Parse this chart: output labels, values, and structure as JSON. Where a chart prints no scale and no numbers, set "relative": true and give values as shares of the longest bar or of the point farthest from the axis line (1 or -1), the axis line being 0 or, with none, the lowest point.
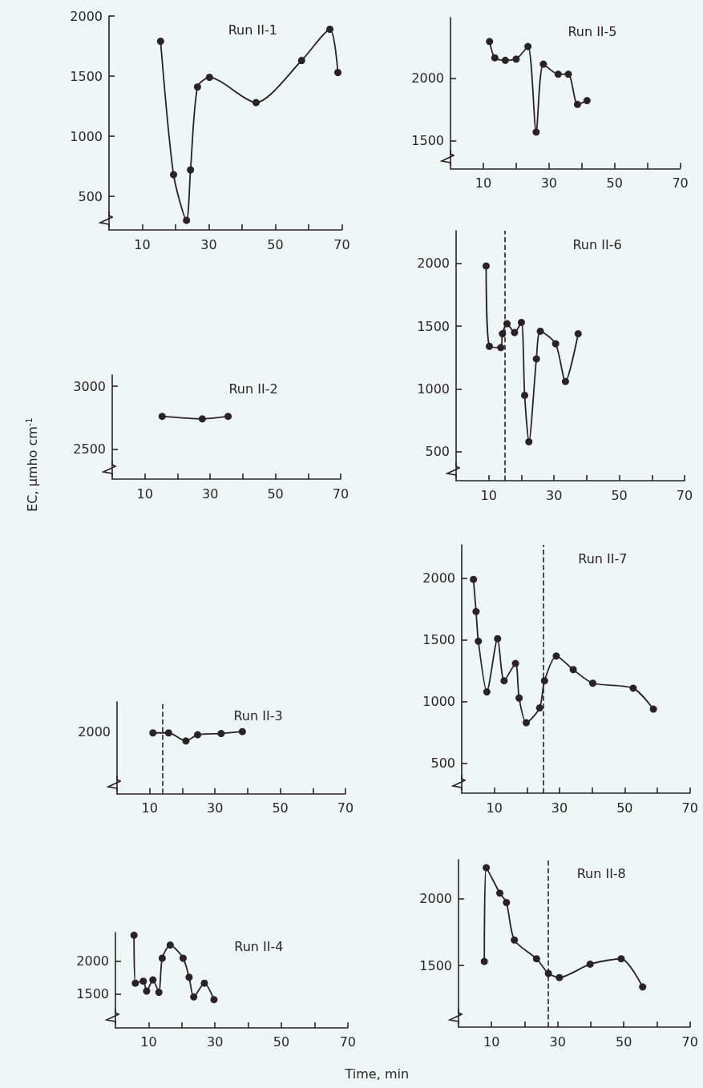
{
  "chart_data": [
    {
      "type": "line",
      "title": "Run II-1",
      "color": "#2a2226",
      "marker": "circle",
      "x": [
        15.5,
        19.4,
        23.3,
        24.5,
        26.6,
        30.2,
        44.2,
        57.9,
        66.4,
        68.8
      ],
      "values": [
        1790,
        680,
        300,
        720,
        1410,
        1490,
        1280,
        1630,
        1890,
        1530
      ],
      "xlim": [
        0,
        70
      ],
      "xticks": [
        10,
        {
          "value": 20,
          "label": null
        },
        30,
        {
          "value": 40,
          "label": null
        },
        50,
        {
          "value": 60,
          "label": null
        },
        70
      ],
      "ylim": [
        220,
        2000
      ],
      "yticks": [
        500,
        1000,
        1500,
        2000
      ]
    },
    {
      "type": "line",
      "title": "Run II-2",
      "ylabel": "EC, μmho cm$^{-1}$",
      "color": "#2a2226",
      "marker": "circle",
      "x": [
        15.3,
        27.6,
        35.5
      ],
      "values": [
        2760,
        2740,
        2760
      ],
      "xlim": [
        0,
        70
      ],
      "xticks": [
        10,
        {
          "value": 20,
          "label": null
        },
        30,
        {
          "value": 40,
          "label": null
        },
        50,
        {
          "value": 60,
          "label": null
        },
        70
      ],
      "ylim": [
        2260,
        3090
      ],
      "yticks": [
        2500,
        3000
      ]
    },
    {
      "type": "line",
      "title": "Run II-3",
      "color": "#2a2226",
      "marker": "circle",
      "relative": true,
      "x": [
        11.0,
        15.8,
        21.1,
        24.7,
        31.9,
        38.4
      ],
      "values": [
        0.98,
        0.98,
        0.85,
        0.95,
        0.97,
        1
      ],
      "xlim": [
        0,
        70
      ],
      "xticks": [
        10,
        {
          "value": 20,
          "label": null
        },
        30,
        {
          "value": 40,
          "label": null
        },
        50,
        {
          "value": 60,
          "label": null
        },
        70
      ],
      "ref_lines": [
        {
          "axis": "x",
          "value": 14,
          "line_style": "dashed"
        }
      ],
      "annotations": [
        "2000"
      ]
    },
    {
      "type": "line",
      "title": "Run II-4",
      "xlabel": "Time, min",
      "color": "#2a2226",
      "marker": "circle",
      "x": [
        5.6,
        6.0,
        8.4,
        9.4,
        11.3,
        13.1,
        14.1,
        16.5,
        20.4,
        22.2,
        23.6,
        26.8,
        29.7
      ],
      "values": [
        2390,
        1660,
        1690,
        1540,
        1710,
        1520,
        2040,
        2240,
        2040,
        1750,
        1450,
        1660,
        1410
      ],
      "xlim": [
        0,
        70
      ],
      "xticks": [
        10,
        {
          "value": 20,
          "label": null
        },
        30,
        {
          "value": 40,
          "label": null
        },
        50,
        {
          "value": 60,
          "label": null
        },
        70
      ],
      "ylim": [
        980,
        2430
      ],
      "yticks": [
        1500,
        2000
      ]
    },
    {
      "type": "line",
      "title": "Run II-5",
      "color": "#2a2226",
      "marker": "circle",
      "x": [
        11.9,
        13.5,
        16.7,
        20.0,
        23.6,
        26.1,
        28.3,
        32.8,
        35.9,
        38.7,
        41.6
      ],
      "values": [
        2290,
        2160,
        2140,
        2150,
        2250,
        1570,
        2110,
        2030,
        2030,
        1790,
        1820
      ],
      "xlim": [
        0,
        70
      ],
      "xticks": [
        10,
        {
          "value": 20,
          "label": null
        },
        30,
        {
          "value": 40,
          "label": null
        },
        50,
        {
          "value": 60,
          "label": null
        },
        70
      ],
      "ylim": [
        1280,
        2480
      ],
      "yticks": [
        1500,
        2000
      ]
    },
    {
      "type": "line",
      "title": "Run II-6",
      "color": "#2a2226",
      "marker": "circle",
      "x": [
        9.2,
        10.2,
        13.7,
        14.2,
        15.6,
        17.9,
        20.0,
        21.0,
        22.3,
        24.6,
        25.8,
        30.5,
        33.5,
        37.4
      ],
      "values": [
        1980,
        1340,
        1330,
        1440,
        1520,
        1450,
        1530,
        950,
        580,
        1240,
        1460,
        1360,
        1060,
        1440
      ],
      "xlim": [
        0,
        70
      ],
      "xticks": [
        10,
        {
          "value": 20,
          "label": null
        },
        30,
        {
          "value": 40,
          "label": null
        },
        50,
        {
          "value": 60,
          "label": null
        },
        70
      ],
      "ylim": [
        270,
        2260
      ],
      "yticks": [
        500,
        1000,
        1500,
        2000
      ],
      "ref_lines": [
        {
          "axis": "x",
          "value": 15,
          "line_style": "dashed"
        }
      ]
    },
    {
      "type": "line",
      "title": "Run II-7",
      "color": "#2a2226",
      "marker": "circle",
      "x": [
        3.6,
        4.4,
        5.1,
        7.7,
        11.0,
        13.0,
        16.5,
        17.6,
        19.8,
        23.9,
        25.4,
        29.0,
        34.2,
        40.2,
        52.6,
        58.8
      ],
      "values": [
        1990,
        1730,
        1490,
        1080,
        1510,
        1170,
        1310,
        1030,
        830,
        950,
        1170,
        1370,
        1260,
        1150,
        1110,
        940
      ],
      "xlim": [
        0,
        70
      ],
      "xticks": [
        10,
        {
          "value": 20,
          "label": null
        },
        30,
        {
          "value": 40,
          "label": null
        },
        50,
        {
          "value": 60,
          "label": null
        },
        70
      ],
      "ylim": [
        260,
        2270
      ],
      "yticks": [
        500,
        1000,
        1500,
        2000
      ],
      "ref_lines": [
        {
          "axis": "x",
          "value": 25,
          "line_style": "dashed"
        }
      ]
    },
    {
      "type": "line",
      "title": "Run II-8",
      "color": "#2a2226",
      "marker": "circle",
      "x": [
        7.8,
        8.4,
        12.5,
        14.5,
        16.9,
        23.6,
        27.2,
        30.5,
        39.8,
        49.2,
        55.7
      ],
      "values": [
        1530,
        2230,
        2040,
        1970,
        1690,
        1550,
        1440,
        1410,
        1510,
        1550,
        1340
      ],
      "xlim": [
        0,
        70
      ],
      "xticks": [
        10,
        {
          "value": 20,
          "label": null
        },
        30,
        {
          "value": 40,
          "label": null
        },
        50,
        {
          "value": 60,
          "label": null
        },
        70
      ],
      "ylim": [
        1040,
        2290
      ],
      "yticks": [
        1500,
        2000
      ],
      "ref_lines": [
        {
          "axis": "x",
          "value": 27,
          "line_style": "dashed"
        }
      ]
    }
  ]
}
